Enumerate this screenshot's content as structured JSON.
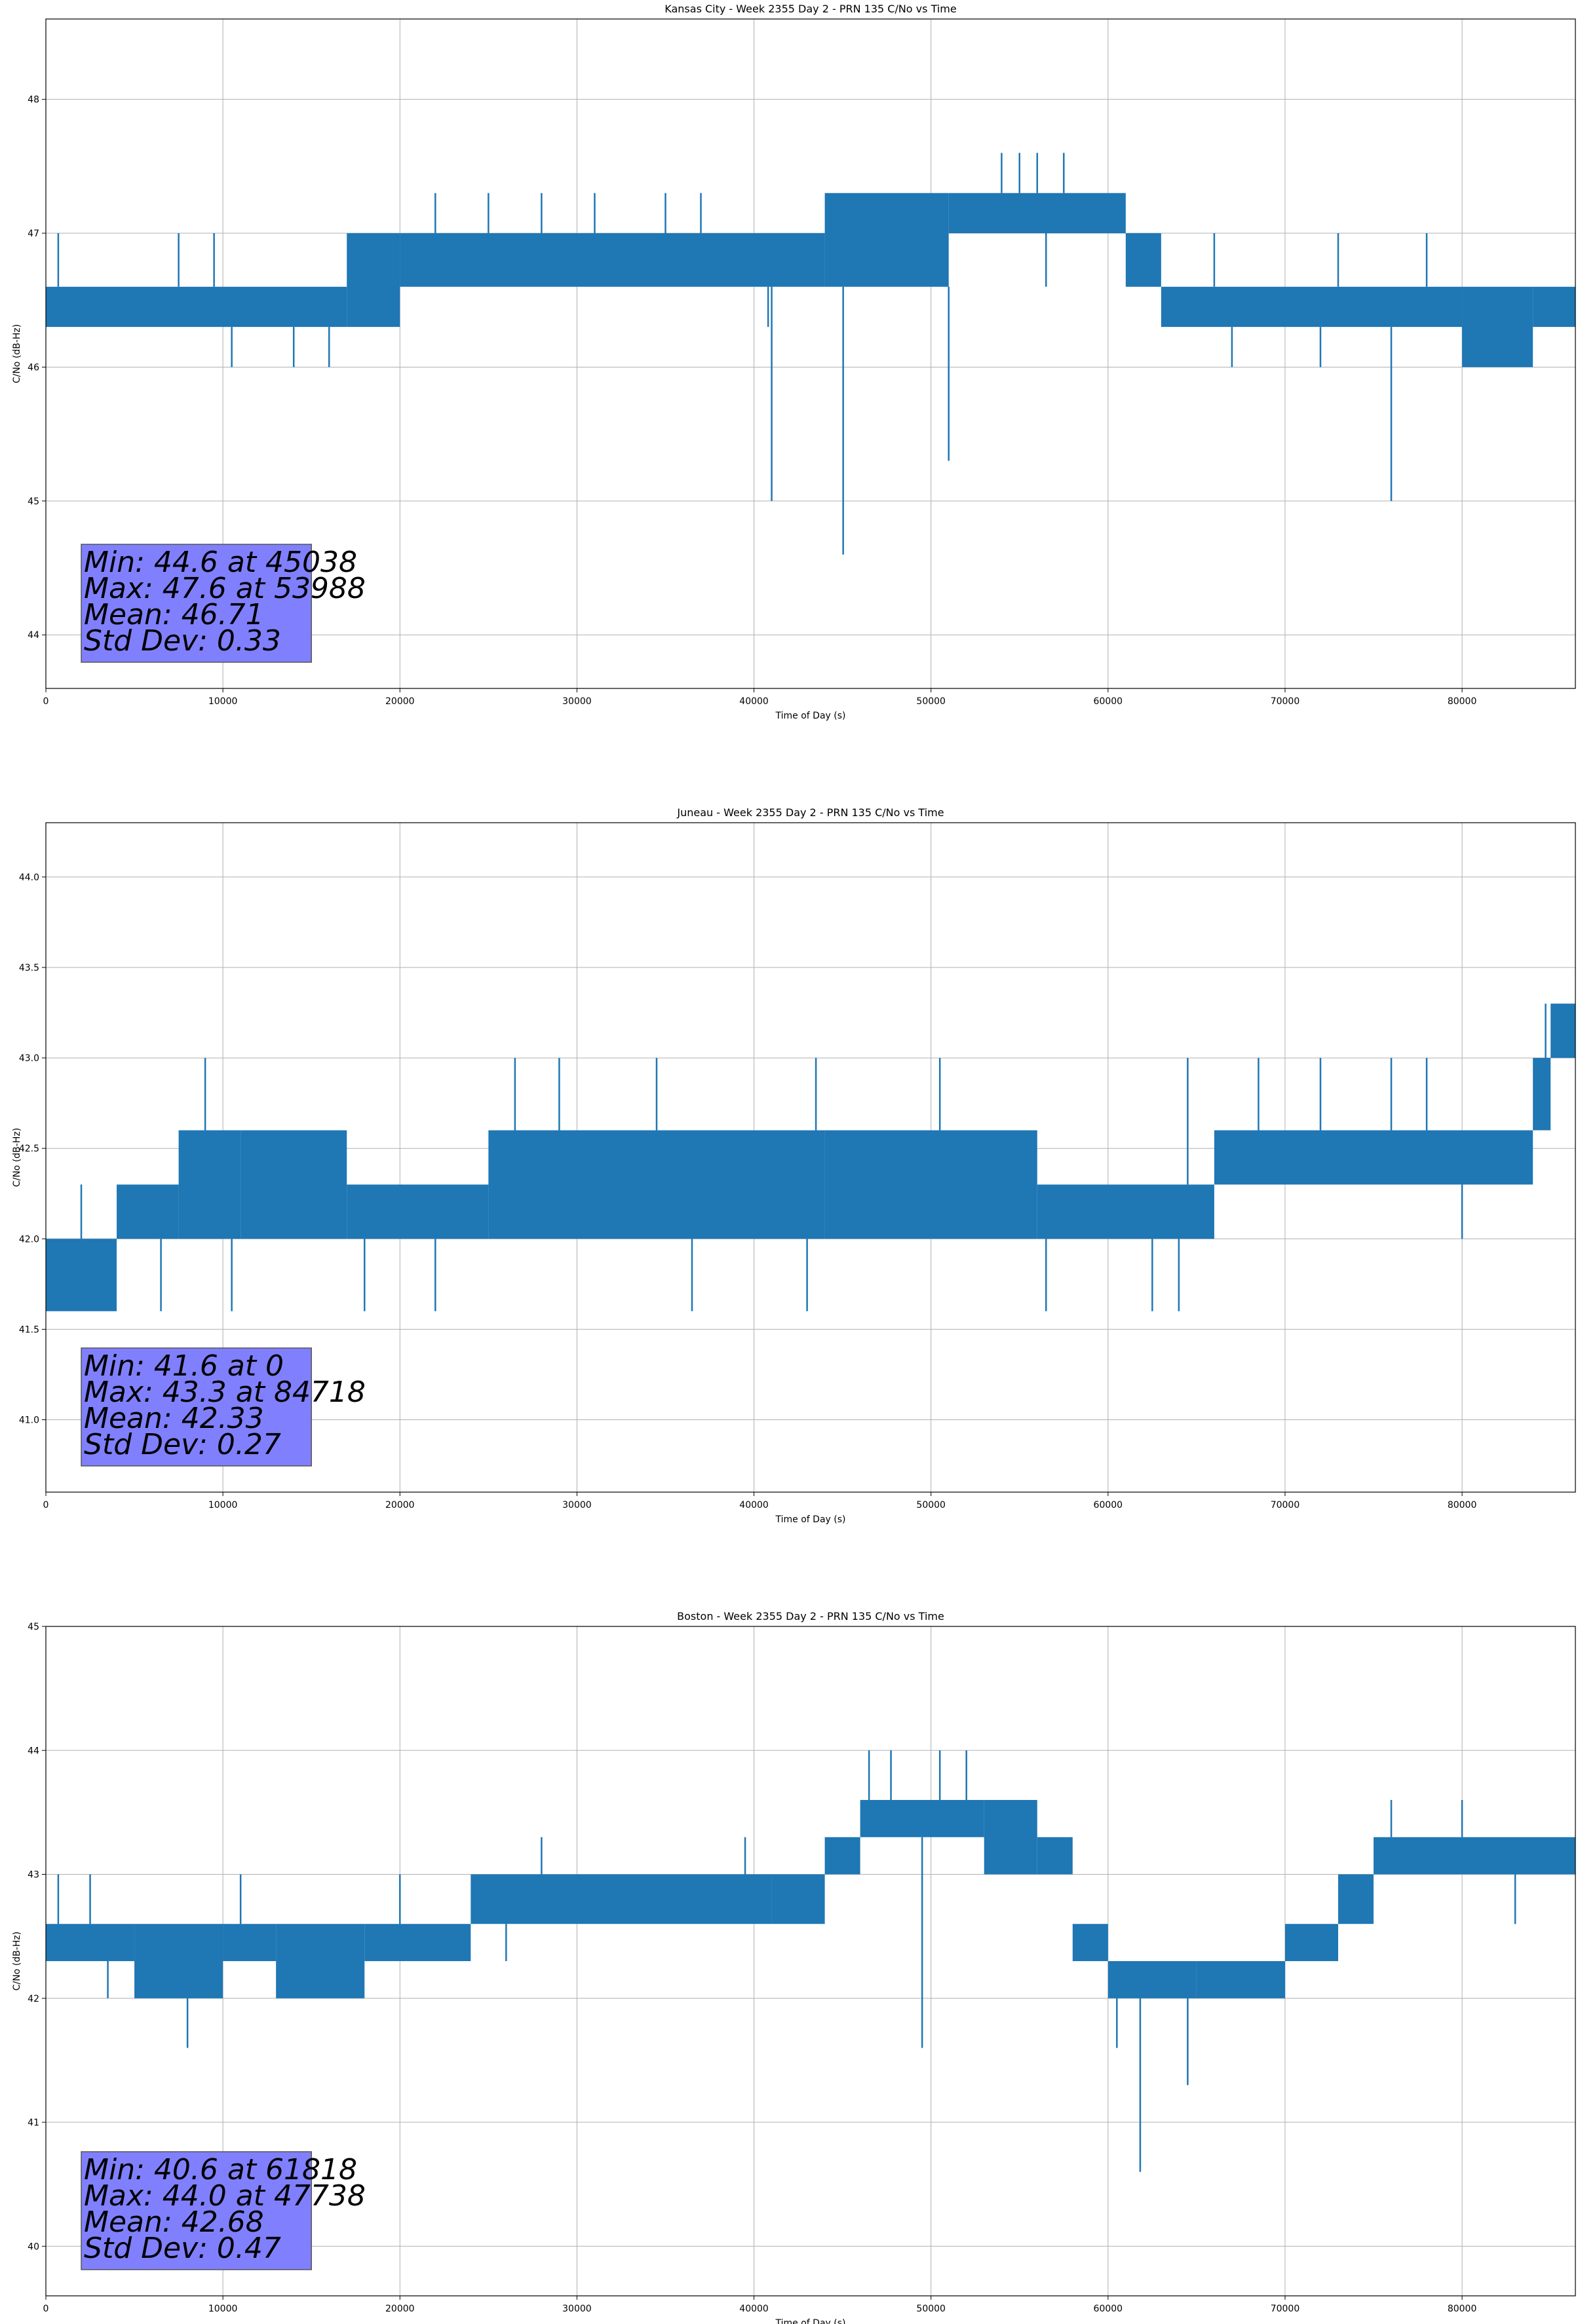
{
  "chart_data": [
    {
      "type": "line",
      "title": "Kansas City - Week 2355 Day 2 - PRN 135 C/No vs Time",
      "xlabel": "Time of Day (s)",
      "ylabel": "C/No (dB-Hz)",
      "xlim": [
        0,
        86400
      ],
      "ylim": [
        43.6,
        48.6
      ],
      "xticks": [
        0,
        10000,
        20000,
        30000,
        40000,
        50000,
        60000,
        70000,
        80000
      ],
      "xtick_labels": [
        "0",
        "10000",
        "20000",
        "30000",
        "40000",
        "50000",
        "60000",
        "70000",
        "80000"
      ],
      "yticks": [
        44,
        45,
        46,
        47,
        48
      ],
      "ytick_labels": [
        "44",
        "45",
        "46",
        "47",
        "48"
      ],
      "grid": true,
      "color": "#1f77b4",
      "band_segments": [
        {
          "x": [
            0,
            17000
          ],
          "y": [
            46.3,
            46.6
          ]
        },
        {
          "x": [
            17000,
            20000
          ],
          "y": [
            46.3,
            47.0
          ]
        },
        {
          "x": [
            20000,
            44000
          ],
          "y": [
            46.6,
            47.0
          ]
        },
        {
          "x": [
            44000,
            51000
          ],
          "y": [
            46.6,
            47.3
          ]
        },
        {
          "x": [
            51000,
            61000
          ],
          "y": [
            47.0,
            47.3
          ]
        },
        {
          "x": [
            61000,
            63000
          ],
          "y": [
            46.6,
            47.0
          ]
        },
        {
          "x": [
            63000,
            80000
          ],
          "y": [
            46.3,
            46.6
          ]
        },
        {
          "x": [
            80000,
            84000
          ],
          "y": [
            46.0,
            46.6
          ]
        },
        {
          "x": [
            84000,
            86400
          ],
          "y": [
            46.3,
            46.6
          ]
        }
      ],
      "spikes": [
        {
          "x": 700,
          "y": 47.0
        },
        {
          "x": 5000,
          "y": 46.3
        },
        {
          "x": 7500,
          "y": 47.0
        },
        {
          "x": 9500,
          "y": 47.0
        },
        {
          "x": 10500,
          "y": 46.0
        },
        {
          "x": 14000,
          "y": 46.0
        },
        {
          "x": 16000,
          "y": 46.0
        },
        {
          "x": 22000,
          "y": 47.3
        },
        {
          "x": 25000,
          "y": 47.3
        },
        {
          "x": 28000,
          "y": 47.3
        },
        {
          "x": 31000,
          "y": 47.3
        },
        {
          "x": 35000,
          "y": 47.3
        },
        {
          "x": 37000,
          "y": 47.3
        },
        {
          "x": 40800,
          "y": 46.3
        },
        {
          "x": 41000,
          "y": 45.0
        },
        {
          "x": 45038,
          "y": 44.6
        },
        {
          "x": 48000,
          "y": 46.6
        },
        {
          "x": 51000,
          "y": 45.3
        },
        {
          "x": 53988,
          "y": 47.6
        },
        {
          "x": 55000,
          "y": 47.6
        },
        {
          "x": 56000,
          "y": 47.6
        },
        {
          "x": 56500,
          "y": 46.6
        },
        {
          "x": 57500,
          "y": 47.6
        },
        {
          "x": 66000,
          "y": 47.0
        },
        {
          "x": 67000,
          "y": 46.0
        },
        {
          "x": 72000,
          "y": 46.0
        },
        {
          "x": 73000,
          "y": 47.0
        },
        {
          "x": 76000,
          "y": 45.0
        },
        {
          "x": 78000,
          "y": 47.0
        },
        {
          "x": 82000,
          "y": 46.0
        }
      ],
      "stats": [
        {
          "text": "Min: 44.6 at 45038"
        },
        {
          "text": "Max: 47.6 at 53988"
        },
        {
          "text": "Mean: 46.71"
        },
        {
          "text": "Std Dev: 0.33"
        }
      ]
    },
    {
      "type": "line",
      "title": "Juneau - Week 2355 Day 2 - PRN 135 C/No vs Time",
      "xlabel": "Time of Day (s)",
      "ylabel": "C/No (dB-Hz)",
      "xlim": [
        0,
        86400
      ],
      "ylim": [
        40.6,
        44.3
      ],
      "xticks": [
        0,
        10000,
        20000,
        30000,
        40000,
        50000,
        60000,
        70000,
        80000
      ],
      "xtick_labels": [
        "0",
        "10000",
        "20000",
        "30000",
        "40000",
        "50000",
        "60000",
        "70000",
        "80000"
      ],
      "yticks": [
        41.0,
        41.5,
        42.0,
        42.5,
        43.0,
        43.5,
        44.0
      ],
      "ytick_labels": [
        "41.0",
        "41.5",
        "42.0",
        "42.5",
        "43.0",
        "43.5",
        "44.0"
      ],
      "grid": true,
      "color": "#1f77b4",
      "band_segments": [
        {
          "x": [
            0,
            4000
          ],
          "y": [
            41.6,
            42.0
          ]
        },
        {
          "x": [
            4000,
            7500
          ],
          "y": [
            42.0,
            42.3
          ]
        },
        {
          "x": [
            7500,
            11000
          ],
          "y": [
            42.0,
            42.6
          ]
        },
        {
          "x": [
            11000,
            17000
          ],
          "y": [
            42.0,
            42.6
          ]
        },
        {
          "x": [
            17000,
            25000
          ],
          "y": [
            42.0,
            42.3
          ]
        },
        {
          "x": [
            25000,
            44000
          ],
          "y": [
            42.0,
            42.6
          ]
        },
        {
          "x": [
            44000,
            56000
          ],
          "y": [
            42.0,
            42.6
          ]
        },
        {
          "x": [
            56000,
            66000
          ],
          "y": [
            42.0,
            42.3
          ]
        },
        {
          "x": [
            66000,
            84000
          ],
          "y": [
            42.3,
            42.6
          ]
        },
        {
          "x": [
            84000,
            85000
          ],
          "y": [
            42.6,
            43.0
          ]
        },
        {
          "x": [
            85000,
            86400
          ],
          "y": [
            43.0,
            43.3
          ]
        }
      ],
      "spikes": [
        {
          "x": 2000,
          "y": 42.3
        },
        {
          "x": 6500,
          "y": 41.6
        },
        {
          "x": 9000,
          "y": 43.0
        },
        {
          "x": 10500,
          "y": 41.6
        },
        {
          "x": 18000,
          "y": 41.6
        },
        {
          "x": 22000,
          "y": 41.6
        },
        {
          "x": 26500,
          "y": 43.0
        },
        {
          "x": 29000,
          "y": 43.0
        },
        {
          "x": 34500,
          "y": 43.0
        },
        {
          "x": 36500,
          "y": 41.6
        },
        {
          "x": 43000,
          "y": 41.6
        },
        {
          "x": 43500,
          "y": 43.0
        },
        {
          "x": 50500,
          "y": 43.0
        },
        {
          "x": 56500,
          "y": 41.6
        },
        {
          "x": 62500,
          "y": 41.6
        },
        {
          "x": 64000,
          "y": 41.6
        },
        {
          "x": 64500,
          "y": 43.0
        },
        {
          "x": 68500,
          "y": 43.0
        },
        {
          "x": 72000,
          "y": 43.0
        },
        {
          "x": 76000,
          "y": 43.0
        },
        {
          "x": 78000,
          "y": 43.0
        },
        {
          "x": 80000,
          "y": 42.0
        },
        {
          "x": 84718,
          "y": 43.3
        }
      ],
      "stats": [
        {
          "text": "Min: 41.6 at 0"
        },
        {
          "text": "Max: 43.3 at 84718"
        },
        {
          "text": "Mean: 42.33"
        },
        {
          "text": "Std Dev: 0.27"
        }
      ]
    },
    {
      "type": "line",
      "title": "Boston - Week 2355 Day 2 - PRN 135 C/No vs Time",
      "xlabel": "Time of Day (s)",
      "ylabel": "C/No (dB-Hz)",
      "xlim": [
        0,
        86400
      ],
      "ylim": [
        39.6,
        45.0
      ],
      "xticks": [
        0,
        10000,
        20000,
        30000,
        40000,
        50000,
        60000,
        70000,
        80000
      ],
      "xtick_labels": [
        "0",
        "10000",
        "20000",
        "30000",
        "40000",
        "50000",
        "60000",
        "70000",
        "80000"
      ],
      "yticks": [
        40,
        41,
        42,
        43,
        44,
        45
      ],
      "ytick_labels": [
        "40",
        "41",
        "42",
        "43",
        "44",
        "45"
      ],
      "grid": true,
      "color": "#1f77b4",
      "band_segments": [
        {
          "x": [
            0,
            5000
          ],
          "y": [
            42.3,
            42.6
          ]
        },
        {
          "x": [
            5000,
            10000
          ],
          "y": [
            42.0,
            42.6
          ]
        },
        {
          "x": [
            10000,
            13000
          ],
          "y": [
            42.3,
            42.6
          ]
        },
        {
          "x": [
            13000,
            18000
          ],
          "y": [
            42.0,
            42.6
          ]
        },
        {
          "x": [
            18000,
            24000
          ],
          "y": [
            42.3,
            42.6
          ]
        },
        {
          "x": [
            24000,
            41000
          ],
          "y": [
            42.6,
            43.0
          ]
        },
        {
          "x": [
            41000,
            44000
          ],
          "y": [
            42.6,
            43.0
          ]
        },
        {
          "x": [
            44000,
            46000
          ],
          "y": [
            43.0,
            43.3
          ]
        },
        {
          "x": [
            46000,
            53000
          ],
          "y": [
            43.3,
            43.6
          ]
        },
        {
          "x": [
            53000,
            56000
          ],
          "y": [
            43.0,
            43.6
          ]
        },
        {
          "x": [
            56000,
            58000
          ],
          "y": [
            43.0,
            43.3
          ]
        },
        {
          "x": [
            58000,
            60000
          ],
          "y": [
            42.3,
            42.6
          ]
        },
        {
          "x": [
            60000,
            65000
          ],
          "y": [
            42.0,
            42.3
          ]
        },
        {
          "x": [
            65000,
            70000
          ],
          "y": [
            42.0,
            42.3
          ]
        },
        {
          "x": [
            70000,
            73000
          ],
          "y": [
            42.3,
            42.6
          ]
        },
        {
          "x": [
            73000,
            75000
          ],
          "y": [
            42.6,
            43.0
          ]
        },
        {
          "x": [
            75000,
            86400
          ],
          "y": [
            43.0,
            43.3
          ]
        }
      ],
      "spikes": [
        {
          "x": 700,
          "y": 43.0
        },
        {
          "x": 2500,
          "y": 43.0
        },
        {
          "x": 3500,
          "y": 42.0
        },
        {
          "x": 8000,
          "y": 41.6
        },
        {
          "x": 11000,
          "y": 43.0
        },
        {
          "x": 20000,
          "y": 43.0
        },
        {
          "x": 26000,
          "y": 42.3
        },
        {
          "x": 28000,
          "y": 43.3
        },
        {
          "x": 39500,
          "y": 43.3
        },
        {
          "x": 46500,
          "y": 44.0
        },
        {
          "x": 47738,
          "y": 44.0
        },
        {
          "x": 49500,
          "y": 41.6
        },
        {
          "x": 50500,
          "y": 44.0
        },
        {
          "x": 52000,
          "y": 44.0
        },
        {
          "x": 60500,
          "y": 41.6
        },
        {
          "x": 61818,
          "y": 40.6
        },
        {
          "x": 64500,
          "y": 41.3
        },
        {
          "x": 76000,
          "y": 43.6
        },
        {
          "x": 80000,
          "y": 43.6
        },
        {
          "x": 83000,
          "y": 42.6
        }
      ],
      "stats": [
        {
          "text": "Min: 40.6 at 61818"
        },
        {
          "text": "Max: 44.0 at 47738"
        },
        {
          "text": "Mean: 42.68"
        },
        {
          "text": "Std Dev: 0.47"
        }
      ]
    }
  ],
  "colors": {
    "series": "#1f77b4",
    "grid": "#b0b0b0",
    "stats_box_fill": "#8080ff",
    "stats_box_edge": "#555555"
  }
}
